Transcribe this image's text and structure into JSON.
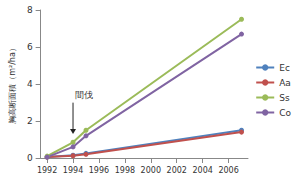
{
  "chart_data": {
    "type": "line",
    "y_label": "胸高断面積（m²/ha）",
    "x": [
      1992,
      1994,
      1995,
      2007
    ],
    "series": [
      {
        "name": "Ec",
        "color": "#4f81bd",
        "values": [
          0.05,
          0.15,
          0.25,
          1.5
        ]
      },
      {
        "name": "Aa",
        "color": "#c0504d",
        "values": [
          0.05,
          0.12,
          0.2,
          1.4
        ]
      },
      {
        "name": "Ss",
        "color": "#9bbb59",
        "values": [
          0.1,
          0.85,
          1.5,
          7.5
        ]
      },
      {
        "name": "Co",
        "color": "#8064a2",
        "values": [
          0.05,
          0.6,
          1.2,
          6.7
        ]
      }
    ],
    "xlim": [
      1991.5,
      2007.5
    ],
    "xticks": [
      1992,
      1994,
      1996,
      1998,
      2000,
      2002,
      2004,
      2006
    ],
    "ylim": [
      0,
      8
    ],
    "yticks": [
      0,
      2,
      4,
      6,
      8
    ],
    "grid": false,
    "legend": "right",
    "marker": "circle",
    "annotations": [
      {
        "text": "間伐",
        "x": 1994,
        "y": 3.1,
        "arrow_y": 1.3
      }
    ]
  }
}
